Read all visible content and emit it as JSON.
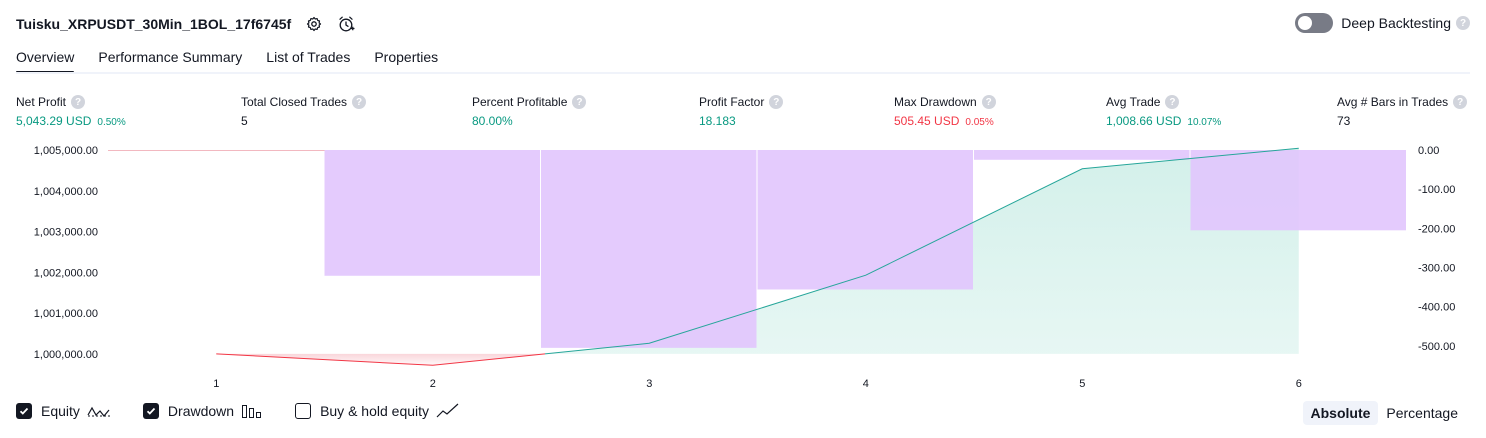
{
  "header": {
    "title": "Tuisku_XRPUSDT_30Min_1BOL_17f6745f",
    "settings_icon": "settings-gear-icon",
    "alert_icon": "add-alarm-icon"
  },
  "deep_backtesting": {
    "label": "Deep Backtesting",
    "enabled": false,
    "help_glyph": "?"
  },
  "tabs": [
    {
      "label": "Overview",
      "active": true
    },
    {
      "label": "Performance Summary",
      "active": false
    },
    {
      "label": "List of Trades",
      "active": false
    },
    {
      "label": "Properties",
      "active": false
    }
  ],
  "stats": [
    {
      "label": "Net Profit",
      "value": "5,043.29 USD",
      "pct": "0.50%",
      "color": "green"
    },
    {
      "label": "Total Closed Trades",
      "value": "5",
      "pct": "",
      "color": "dark"
    },
    {
      "label": "Percent Profitable",
      "value": "80.00%",
      "pct": "",
      "color": "green"
    },
    {
      "label": "Profit Factor",
      "value": "18.183",
      "pct": "",
      "color": "green"
    },
    {
      "label": "Max Drawdown",
      "value": "505.45 USD",
      "pct": "0.05%",
      "color": "red"
    },
    {
      "label": "Avg Trade",
      "value": "1,008.66 USD",
      "pct": "10.07%",
      "color": "green"
    },
    {
      "label": "Avg # Bars in Trades",
      "value": "73",
      "pct": "",
      "color": "dark"
    }
  ],
  "colors": {
    "green": "#089981",
    "red": "#f23645",
    "drawdown": "#e1c5fd",
    "equity_fill": "#d3f0ea",
    "equity_line": "#26a69a"
  },
  "chart_data": {
    "type": "line",
    "x": [
      1,
      2,
      3,
      4,
      5,
      6
    ],
    "x_tick_labels": [
      "1",
      "2",
      "3",
      "4",
      "5",
      "6"
    ],
    "left_axis": {
      "ylim": [
        999850,
        1005000
      ],
      "tick_values": [
        1000000,
        1001000,
        1002000,
        1003000,
        1004000,
        1005000
      ],
      "tick_labels": [
        "1,000,000.00",
        "1,001,000.00",
        "1,002,000.00",
        "1,003,000.00",
        "1,004,000.00",
        "1,005,000.00"
      ]
    },
    "right_axis": {
      "ylim": [
        -536,
        0
      ],
      "tick_values": [
        0,
        -100,
        -200,
        -300,
        -400,
        -500
      ],
      "tick_labels": [
        "0.00",
        "-100.00",
        "-200.00",
        "-300.00",
        "-400.00",
        "-500.00"
      ]
    },
    "series": [
      {
        "name": "Equity",
        "axis": "left",
        "values": [
          1000000,
          999720,
          1000260,
          1001930,
          1004540,
          1005043
        ]
      },
      {
        "name": "Drawdown",
        "axis": "right",
        "type": "bar",
        "values": [
          0,
          -321,
          -505,
          -356,
          -25,
          -205
        ]
      }
    ],
    "legend": [
      {
        "name": "Equity",
        "checked": true,
        "icon": "equity-line-icon"
      },
      {
        "name": "Drawdown",
        "checked": true,
        "icon": "drawdown-bars-icon"
      },
      {
        "name": "Buy & hold equity",
        "checked": false,
        "icon": "buy-hold-line-icon"
      }
    ],
    "grid": false
  },
  "modes": [
    {
      "label": "Absolute",
      "active": true
    },
    {
      "label": "Percentage",
      "active": false
    }
  ]
}
